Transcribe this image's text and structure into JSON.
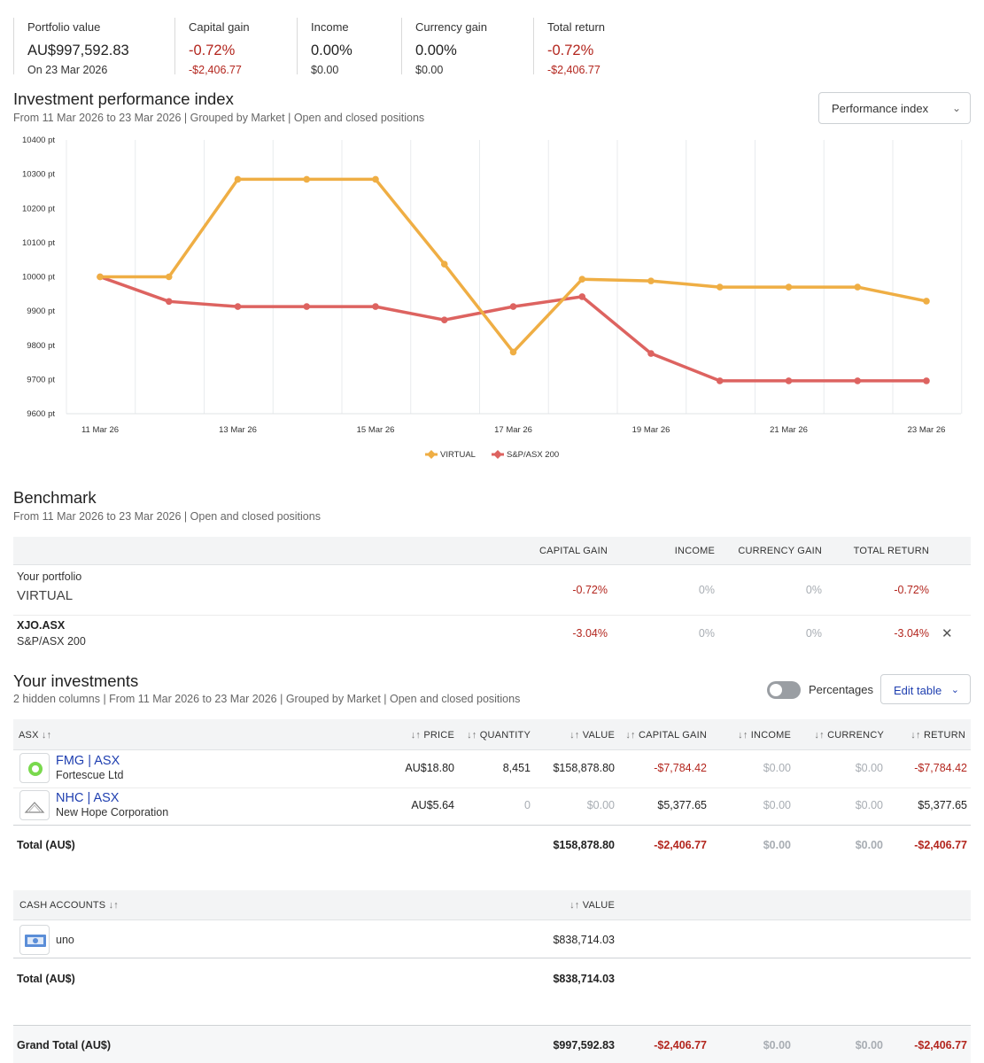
{
  "summary": [
    {
      "label": "Portfolio value",
      "value": "AU$997,592.83",
      "sub": "On 23 Mar 2026",
      "tone": "plain"
    },
    {
      "label": "Capital gain",
      "value": "-0.72%",
      "sub": "-$2,406.77",
      "tone": "red"
    },
    {
      "label": "Income",
      "value": "0.00%",
      "sub": "$0.00",
      "tone": "plain"
    },
    {
      "label": "Currency gain",
      "value": "0.00%",
      "sub": "$0.00",
      "tone": "plain"
    },
    {
      "label": "Total return",
      "value": "-0.72%",
      "sub": "-$2,406.77",
      "tone": "red"
    }
  ],
  "performance": {
    "title": "Investment performance index",
    "subtitle": "From 11 Mar 2026 to 23 Mar 2026 | Grouped by Market | Open and closed positions",
    "select_label": "Performance index"
  },
  "chart_data": {
    "type": "line",
    "title": "Investment performance index",
    "x": [
      "11 Mar 26",
      "12 Mar 26",
      "13 Mar 26",
      "14 Mar 26",
      "15 Mar 26",
      "16 Mar 26",
      "17 Mar 26",
      "18 Mar 26",
      "19 Mar 26",
      "20 Mar 26",
      "21 Mar 26",
      "22 Mar 26",
      "23 Mar 26"
    ],
    "x_tick_labels": [
      "11 Mar 26",
      "13 Mar 26",
      "15 Mar 26",
      "17 Mar 26",
      "19 Mar 26",
      "21 Mar 26",
      "23 Mar 26"
    ],
    "y_tick_labels": [
      "10400 pt",
      "10300 pt",
      "10200 pt",
      "10100 pt",
      "10000 pt",
      "9900 pt",
      "9800 pt",
      "9700 pt",
      "9600 pt"
    ],
    "ylim": [
      9600,
      10400
    ],
    "series": [
      {
        "name": "VIRTUAL",
        "color": "#efae44",
        "values": [
          10000,
          10000,
          10285,
          10285,
          10285,
          10037,
          9780,
          9993,
          9988,
          9970,
          9970,
          9970,
          9929
        ]
      },
      {
        "name": "S&P/ASX 200",
        "color": "#dd6360",
        "values": [
          10000,
          9928,
          9913,
          9913,
          9913,
          9874,
          9913,
          9942,
          9776,
          9696,
          9696,
          9696,
          9696
        ]
      }
    ],
    "legend": "bottom-center",
    "grid": "vertical"
  },
  "benchmark": {
    "title": "Benchmark",
    "subtitle": "From 11 Mar 2026 to 23 Mar 2026 | Open and closed positions",
    "headers": [
      "CAPITAL GAIN",
      "INCOME",
      "CURRENCY GAIN",
      "TOTAL RETURN"
    ],
    "rows": [
      {
        "line1": "Your portfolio",
        "line2": "VIRTUAL",
        "capital_gain": "-0.72%",
        "income": "0%",
        "currency_gain": "0%",
        "total_return": "-0.72%"
      },
      {
        "line1": "XJO.ASX",
        "line2": "S&P/ASX 200",
        "capital_gain": "-3.04%",
        "income": "0%",
        "currency_gain": "0%",
        "total_return": "-3.04%"
      }
    ]
  },
  "investments": {
    "title": "Your investments",
    "subtitle": "2 hidden columns | From 11 Mar 2026 to 23 Mar 2026 | Grouped by Market | Open and closed positions",
    "percentages_label": "Percentages",
    "edit_label": "Edit table",
    "headers": {
      "group": "ASX",
      "price": "PRICE",
      "quantity": "QUANTITY",
      "value": "VALUE",
      "capital_gain": "CAPITAL GAIN",
      "income": "INCOME",
      "currency": "CURRENCY",
      "return": "RETURN"
    },
    "rows": [
      {
        "ticker": "FMG | ASX",
        "name": "Fortescue Ltd",
        "price": "AU$18.80",
        "quantity": "8,451",
        "value": "$158,878.80",
        "capital_gain": "-$7,784.42",
        "income": "$0.00",
        "currency": "$0.00",
        "return": "-$7,784.42"
      },
      {
        "ticker": "NHC | ASX",
        "name": "New Hope Corporation",
        "price": "AU$5.64",
        "quantity": "0",
        "value": "$0.00",
        "capital_gain": "$5,377.65",
        "income": "$0.00",
        "currency": "$0.00",
        "return": "$5,377.65"
      }
    ],
    "total": {
      "label": "Total (AU$)",
      "value": "$158,878.80",
      "capital_gain": "-$2,406.77",
      "income": "$0.00",
      "currency": "$0.00",
      "return": "-$2,406.77"
    }
  },
  "cash": {
    "header": "CASH ACCOUNTS",
    "value_header": "VALUE",
    "rows": [
      {
        "name": "uno",
        "value": "$838,714.03"
      }
    ],
    "total": {
      "label": "Total (AU$)",
      "value": "$838,714.03"
    }
  },
  "grand_total": {
    "label": "Grand Total (AU$)",
    "value": "$997,592.83",
    "capital_gain": "-$2,406.77",
    "income": "$0.00",
    "currency": "$0.00",
    "return": "-$2,406.77"
  }
}
